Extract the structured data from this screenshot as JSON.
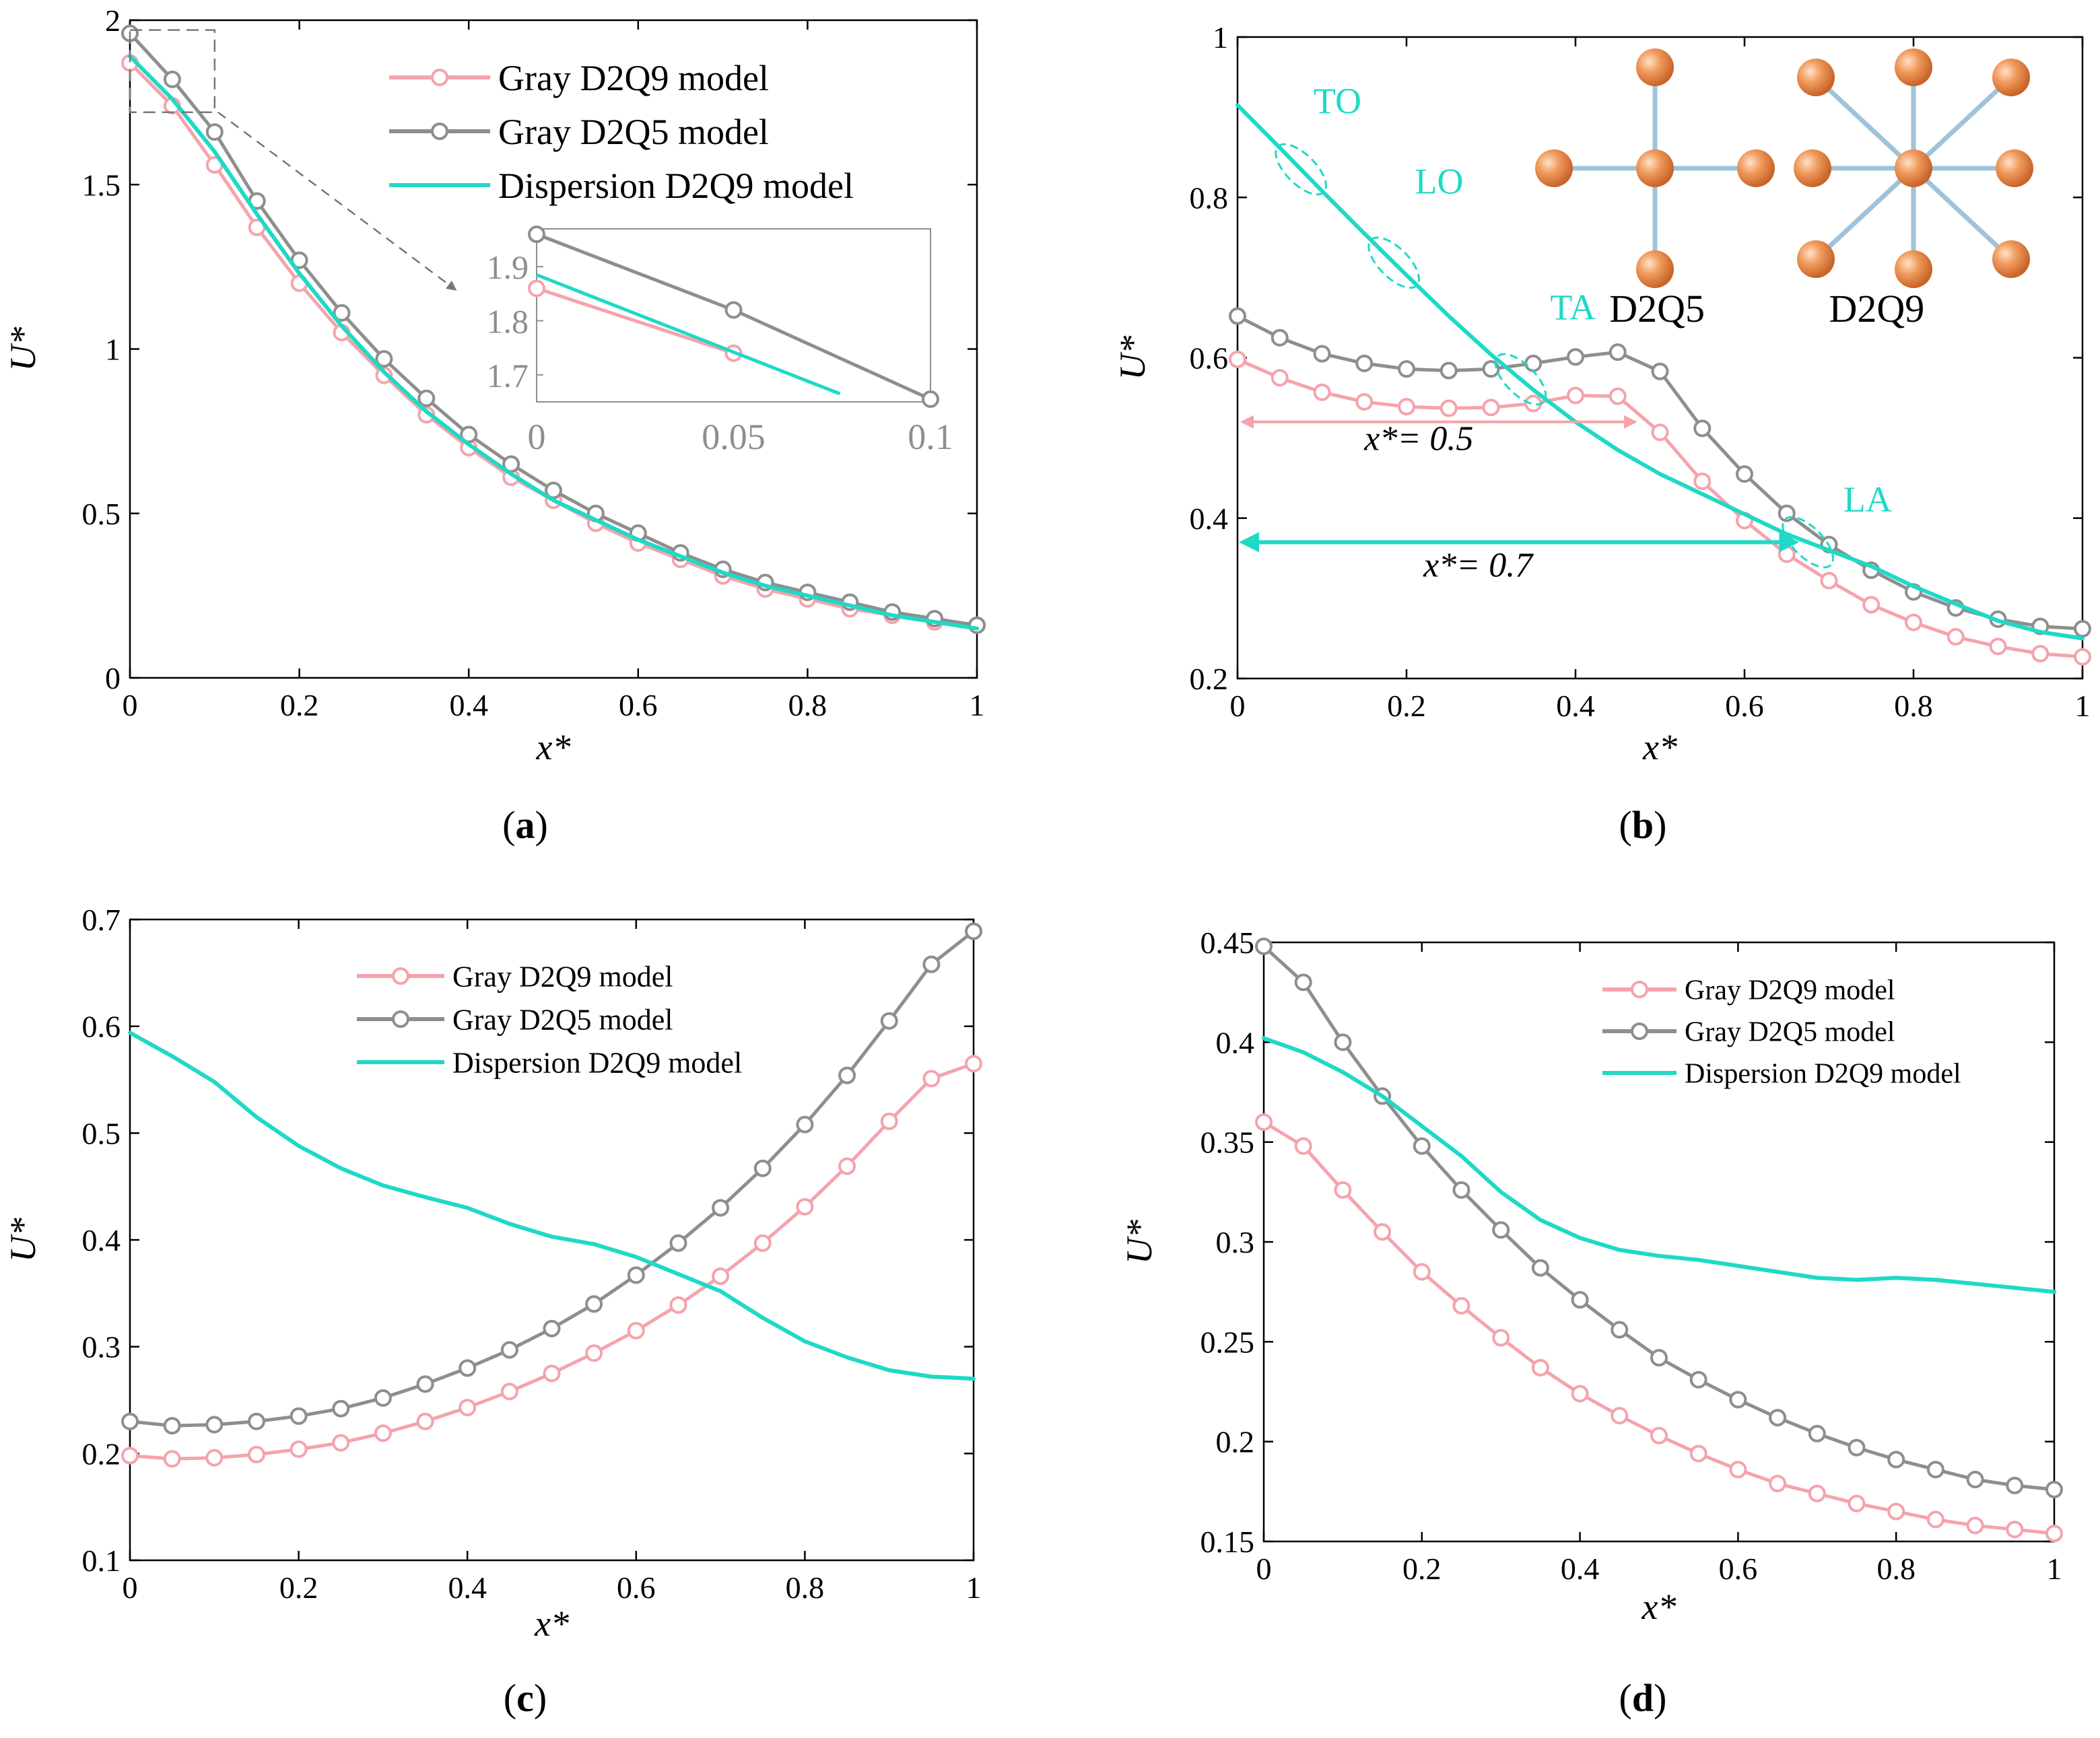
{
  "colors": {
    "pink": "#F5A3AC",
    "gray": "#8E8E8E",
    "cyan": "#1FD9C6",
    "axis": "#000000",
    "atom": "#E87E45",
    "bond": "#9EC3DA"
  },
  "chart_data": [
    {
      "id": "a",
      "panel_label": "a",
      "type": "line",
      "xlabel": "x*",
      "ylabel": "U*",
      "xlim": [
        0,
        1
      ],
      "ylim": [
        0,
        2
      ],
      "xticks": [
        0,
        0.2,
        0.4,
        0.6,
        0.8,
        1
      ],
      "xticklabels": [
        "0",
        "0.2",
        "0.4",
        "0.6",
        "0.8",
        "1"
      ],
      "yticks": [
        0,
        0.5,
        1,
        1.5,
        2
      ],
      "yticklabels": [
        "0",
        "0.5",
        "1",
        "1.5",
        "2"
      ],
      "legend": {
        "position": "top-right",
        "entries": [
          "Gray D2Q9 model",
          "Gray D2Q5 model",
          "Dispersion D2Q9 model"
        ]
      },
      "series": [
        {
          "name": "Gray D2Q9 model",
          "color": "pink",
          "marker": true,
          "x": [
            0,
            0.05,
            0.1,
            0.15,
            0.2,
            0.25,
            0.3,
            0.35,
            0.4,
            0.45,
            0.5,
            0.55,
            0.6,
            0.65,
            0.7,
            0.75,
            0.8,
            0.85,
            0.9,
            0.95,
            1
          ],
          "y": [
            1.87,
            1.74,
            1.56,
            1.37,
            1.2,
            1.05,
            0.92,
            0.8,
            0.7,
            0.61,
            0.54,
            0.47,
            0.41,
            0.36,
            0.31,
            0.27,
            0.24,
            0.21,
            0.19,
            0.17,
            0.16
          ]
        },
        {
          "name": "Gray D2Q5 model",
          "color": "gray",
          "marker": true,
          "x": [
            0,
            0.05,
            0.1,
            0.15,
            0.2,
            0.25,
            0.3,
            0.35,
            0.4,
            0.45,
            0.5,
            0.55,
            0.6,
            0.65,
            0.7,
            0.75,
            0.8,
            0.85,
            0.9,
            0.95,
            1
          ],
          "y": [
            1.96,
            1.82,
            1.66,
            1.45,
            1.27,
            1.11,
            0.97,
            0.85,
            0.74,
            0.65,
            0.57,
            0.5,
            0.44,
            0.38,
            0.33,
            0.29,
            0.26,
            0.23,
            0.2,
            0.18,
            0.16
          ]
        },
        {
          "name": "Dispersion D2Q9 model",
          "color": "cyan",
          "marker": false,
          "x": [
            0,
            0.05,
            0.1,
            0.15,
            0.2,
            0.25,
            0.3,
            0.35,
            0.4,
            0.45,
            0.5,
            0.55,
            0.6,
            0.65,
            0.7,
            0.75,
            0.8,
            0.85,
            0.9,
            0.95,
            1
          ],
          "y": [
            1.89,
            1.76,
            1.6,
            1.41,
            1.23,
            1.07,
            0.93,
            0.81,
            0.71,
            0.62,
            0.54,
            0.48,
            0.42,
            0.37,
            0.32,
            0.28,
            0.25,
            0.22,
            0.19,
            0.17,
            0.15
          ]
        }
      ],
      "inset": {
        "xlim": [
          0,
          0.1
        ],
        "ylim": [
          1.65,
          1.97
        ],
        "xticks": [
          0,
          0.05,
          0.1
        ],
        "xticklabels": [
          "0",
          "0.05",
          "0.1"
        ],
        "yticks": [
          1.7,
          1.8,
          1.9
        ],
        "yticklabels": [
          "1.7",
          "1.8",
          "1.9"
        ],
        "series": [
          {
            "name": "Gray D2Q9 model",
            "color": "pink",
            "marker": true,
            "x": [
              0,
              0.05
            ],
            "y": [
              1.86,
              1.74
            ]
          },
          {
            "name": "Gray D2Q5 model",
            "color": "gray",
            "marker": true,
            "x": [
              0,
              0.05,
              0.1
            ],
            "y": [
              1.96,
              1.82,
              1.655
            ]
          },
          {
            "name": "Dispersion D2Q9 model",
            "color": "cyan",
            "marker": false,
            "x": [
              0,
              0.077
            ],
            "y": [
              1.885,
              1.665
            ]
          }
        ]
      }
    },
    {
      "id": "b",
      "panel_label": "b",
      "type": "line",
      "xlabel": "x*",
      "ylabel": "U*",
      "xlim": [
        0,
        1
      ],
      "ylim": [
        0.2,
        1
      ],
      "xticks": [
        0,
        0.2,
        0.4,
        0.6,
        0.8,
        1
      ],
      "xticklabels": [
        "0",
        "0.2",
        "0.4",
        "0.6",
        "0.8",
        "1"
      ],
      "yticks": [
        0.2,
        0.4,
        0.6,
        0.8,
        1
      ],
      "yticklabels": [
        "0.2",
        "0.4",
        "0.6",
        "0.8",
        "1"
      ],
      "series": [
        {
          "name": "Gray D2Q9 model",
          "color": "pink",
          "marker": true,
          "x": [
            0,
            0.05,
            0.1,
            0.15,
            0.2,
            0.25,
            0.3,
            0.35,
            0.4,
            0.45,
            0.5,
            0.55,
            0.6,
            0.65,
            0.7,
            0.75,
            0.8,
            0.85,
            0.9,
            0.95,
            1
          ],
          "y": [
            0.598,
            0.575,
            0.557,
            0.545,
            0.539,
            0.537,
            0.538,
            0.543,
            0.553,
            0.552,
            0.507,
            0.446,
            0.397,
            0.355,
            0.322,
            0.292,
            0.27,
            0.252,
            0.24,
            0.231,
            0.227
          ]
        },
        {
          "name": "Gray D2Q5 model",
          "color": "gray",
          "marker": true,
          "x": [
            0,
            0.05,
            0.1,
            0.15,
            0.2,
            0.25,
            0.3,
            0.35,
            0.4,
            0.45,
            0.5,
            0.55,
            0.6,
            0.65,
            0.7,
            0.75,
            0.8,
            0.85,
            0.9,
            0.95,
            1
          ],
          "y": [
            0.652,
            0.625,
            0.605,
            0.593,
            0.586,
            0.584,
            0.586,
            0.593,
            0.601,
            0.607,
            0.583,
            0.512,
            0.455,
            0.406,
            0.367,
            0.335,
            0.308,
            0.288,
            0.274,
            0.265,
            0.262
          ]
        },
        {
          "name": "Dispersion D2Q9 model",
          "color": "cyan",
          "marker": false,
          "x": [
            0,
            0.05,
            0.1,
            0.15,
            0.2,
            0.25,
            0.3,
            0.35,
            0.4,
            0.45,
            0.5,
            0.55,
            0.6,
            0.65,
            0.7,
            0.75,
            0.8,
            0.85,
            0.9,
            0.95,
            1
          ],
          "y": [
            0.915,
            0.862,
            0.808,
            0.755,
            0.703,
            0.652,
            0.604,
            0.56,
            0.52,
            0.485,
            0.455,
            0.43,
            0.405,
            0.38,
            0.36,
            0.34,
            0.315,
            0.293,
            0.272,
            0.258,
            0.25
          ]
        }
      ],
      "annotations": [
        {
          "text": "TO",
          "x": 0.09,
          "y": 0.905
        },
        {
          "text": "LO",
          "x": 0.21,
          "y": 0.805
        },
        {
          "text": "TA",
          "x": 0.37,
          "y": 0.648
        },
        {
          "text": "LA",
          "x": 0.717,
          "y": 0.408
        },
        {
          "text": "x*= 0.5",
          "x": 0.15,
          "y": 0.485
        },
        {
          "text": "x*= 0.7",
          "x": 0.22,
          "y": 0.327
        },
        {
          "text": "D2Q5",
          "x": 0.44,
          "y": 0.645
        },
        {
          "text": "D2Q9",
          "x": 0.7,
          "y": 0.645
        }
      ],
      "arrows": [
        {
          "from": 0,
          "to": 0.47,
          "y": 0.52,
          "color": "pink"
        },
        {
          "from": 0,
          "to": 0.66,
          "y": 0.37,
          "color": "cyan"
        }
      ]
    },
    {
      "id": "c",
      "panel_label": "c",
      "type": "line",
      "xlabel": "x*",
      "ylabel": "U*",
      "xlim": [
        0,
        1
      ],
      "ylim": [
        0.1,
        0.7
      ],
      "xticks": [
        0,
        0.2,
        0.4,
        0.6,
        0.8,
        1
      ],
      "xticklabels": [
        "0",
        "0.2",
        "0.4",
        "0.6",
        "0.8",
        "1"
      ],
      "yticks": [
        0.1,
        0.2,
        0.3,
        0.4,
        0.5,
        0.6,
        0.7
      ],
      "yticklabels": [
        "0.1",
        "0.2",
        "0.3",
        "0.4",
        "0.5",
        "0.6",
        "0.7"
      ],
      "legend": {
        "position": "top-center",
        "entries": [
          "Gray D2Q9 model",
          "Gray D2Q5 model",
          "Dispersion D2Q9 model"
        ]
      },
      "series": [
        {
          "name": "Gray D2Q9 model",
          "color": "pink",
          "marker": true,
          "x": [
            0,
            0.05,
            0.1,
            0.15,
            0.2,
            0.25,
            0.3,
            0.35,
            0.4,
            0.45,
            0.5,
            0.55,
            0.6,
            0.65,
            0.7,
            0.75,
            0.8,
            0.85,
            0.9,
            0.95,
            1
          ],
          "y": [
            0.198,
            0.195,
            0.196,
            0.199,
            0.204,
            0.21,
            0.219,
            0.23,
            0.243,
            0.258,
            0.275,
            0.294,
            0.315,
            0.339,
            0.366,
            0.397,
            0.431,
            0.469,
            0.511,
            0.551,
            0.565
          ]
        },
        {
          "name": "Gray D2Q5 model",
          "color": "gray",
          "marker": true,
          "x": [
            0,
            0.05,
            0.1,
            0.15,
            0.2,
            0.25,
            0.3,
            0.35,
            0.4,
            0.45,
            0.5,
            0.55,
            0.6,
            0.65,
            0.7,
            0.75,
            0.8,
            0.85,
            0.9,
            0.95,
            1
          ],
          "y": [
            0.23,
            0.226,
            0.227,
            0.23,
            0.235,
            0.242,
            0.252,
            0.265,
            0.28,
            0.297,
            0.317,
            0.34,
            0.367,
            0.397,
            0.43,
            0.467,
            0.508,
            0.554,
            0.605,
            0.658,
            0.689
          ]
        },
        {
          "name": "Dispersion D2Q9 model",
          "color": "cyan",
          "marker": false,
          "x": [
            0,
            0.05,
            0.1,
            0.15,
            0.2,
            0.25,
            0.3,
            0.35,
            0.4,
            0.45,
            0.5,
            0.55,
            0.6,
            0.65,
            0.7,
            0.75,
            0.8,
            0.85,
            0.9,
            0.95,
            1
          ],
          "y": [
            0.594,
            0.572,
            0.548,
            0.515,
            0.488,
            0.467,
            0.451,
            0.44,
            0.43,
            0.415,
            0.403,
            0.396,
            0.384,
            0.368,
            0.352,
            0.327,
            0.305,
            0.29,
            0.278,
            0.272,
            0.27
          ]
        }
      ]
    },
    {
      "id": "d",
      "panel_label": "d",
      "type": "line",
      "xlabel": "x*",
      "ylabel": "U*",
      "xlim": [
        0,
        1
      ],
      "ylim": [
        0.15,
        0.45
      ],
      "xticks": [
        0,
        0.2,
        0.4,
        0.6,
        0.8,
        1
      ],
      "xticklabels": [
        "0",
        "0.2",
        "0.4",
        "0.6",
        "0.8",
        "1"
      ],
      "yticks": [
        0.15,
        0.2,
        0.25,
        0.3,
        0.35,
        0.4,
        0.45
      ],
      "yticklabels": [
        "0.15",
        "0.2",
        "0.25",
        "0.3",
        "0.35",
        "0.4",
        "0.45"
      ],
      "legend": {
        "position": "top-right",
        "entries": [
          "Gray D2Q9 model",
          "Gray D2Q5 model",
          "Dispersion D2Q9 model"
        ]
      },
      "series": [
        {
          "name": "Gray D2Q9 model",
          "color": "pink",
          "marker": true,
          "x": [
            0,
            0.05,
            0.1,
            0.15,
            0.2,
            0.25,
            0.3,
            0.35,
            0.4,
            0.45,
            0.5,
            0.55,
            0.6,
            0.65,
            0.7,
            0.75,
            0.8,
            0.85,
            0.9,
            0.95,
            1
          ],
          "y": [
            0.36,
            0.348,
            0.326,
            0.305,
            0.285,
            0.268,
            0.252,
            0.237,
            0.224,
            0.213,
            0.203,
            0.194,
            0.186,
            0.179,
            0.174,
            0.169,
            0.165,
            0.161,
            0.158,
            0.156,
            0.154
          ]
        },
        {
          "name": "Gray D2Q5 model",
          "color": "gray",
          "marker": true,
          "x": [
            0,
            0.05,
            0.1,
            0.15,
            0.2,
            0.25,
            0.3,
            0.35,
            0.4,
            0.45,
            0.5,
            0.55,
            0.6,
            0.65,
            0.7,
            0.75,
            0.8,
            0.85,
            0.9,
            0.95,
            1
          ],
          "y": [
            0.448,
            0.43,
            0.4,
            0.373,
            0.348,
            0.326,
            0.306,
            0.287,
            0.271,
            0.256,
            0.242,
            0.231,
            0.221,
            0.212,
            0.204,
            0.197,
            0.191,
            0.186,
            0.181,
            0.178,
            0.176
          ]
        },
        {
          "name": "Dispersion D2Q9 model",
          "color": "cyan",
          "marker": false,
          "x": [
            0,
            0.05,
            0.1,
            0.15,
            0.2,
            0.25,
            0.3,
            0.35,
            0.4,
            0.45,
            0.5,
            0.55,
            0.6,
            0.65,
            0.7,
            0.75,
            0.8,
            0.85,
            0.9,
            0.95,
            1
          ],
          "y": [
            0.402,
            0.395,
            0.385,
            0.373,
            0.358,
            0.343,
            0.325,
            0.311,
            0.302,
            0.296,
            0.293,
            0.291,
            0.288,
            0.285,
            0.282,
            0.281,
            0.282,
            0.281,
            0.279,
            0.277,
            0.275
          ]
        }
      ]
    }
  ]
}
